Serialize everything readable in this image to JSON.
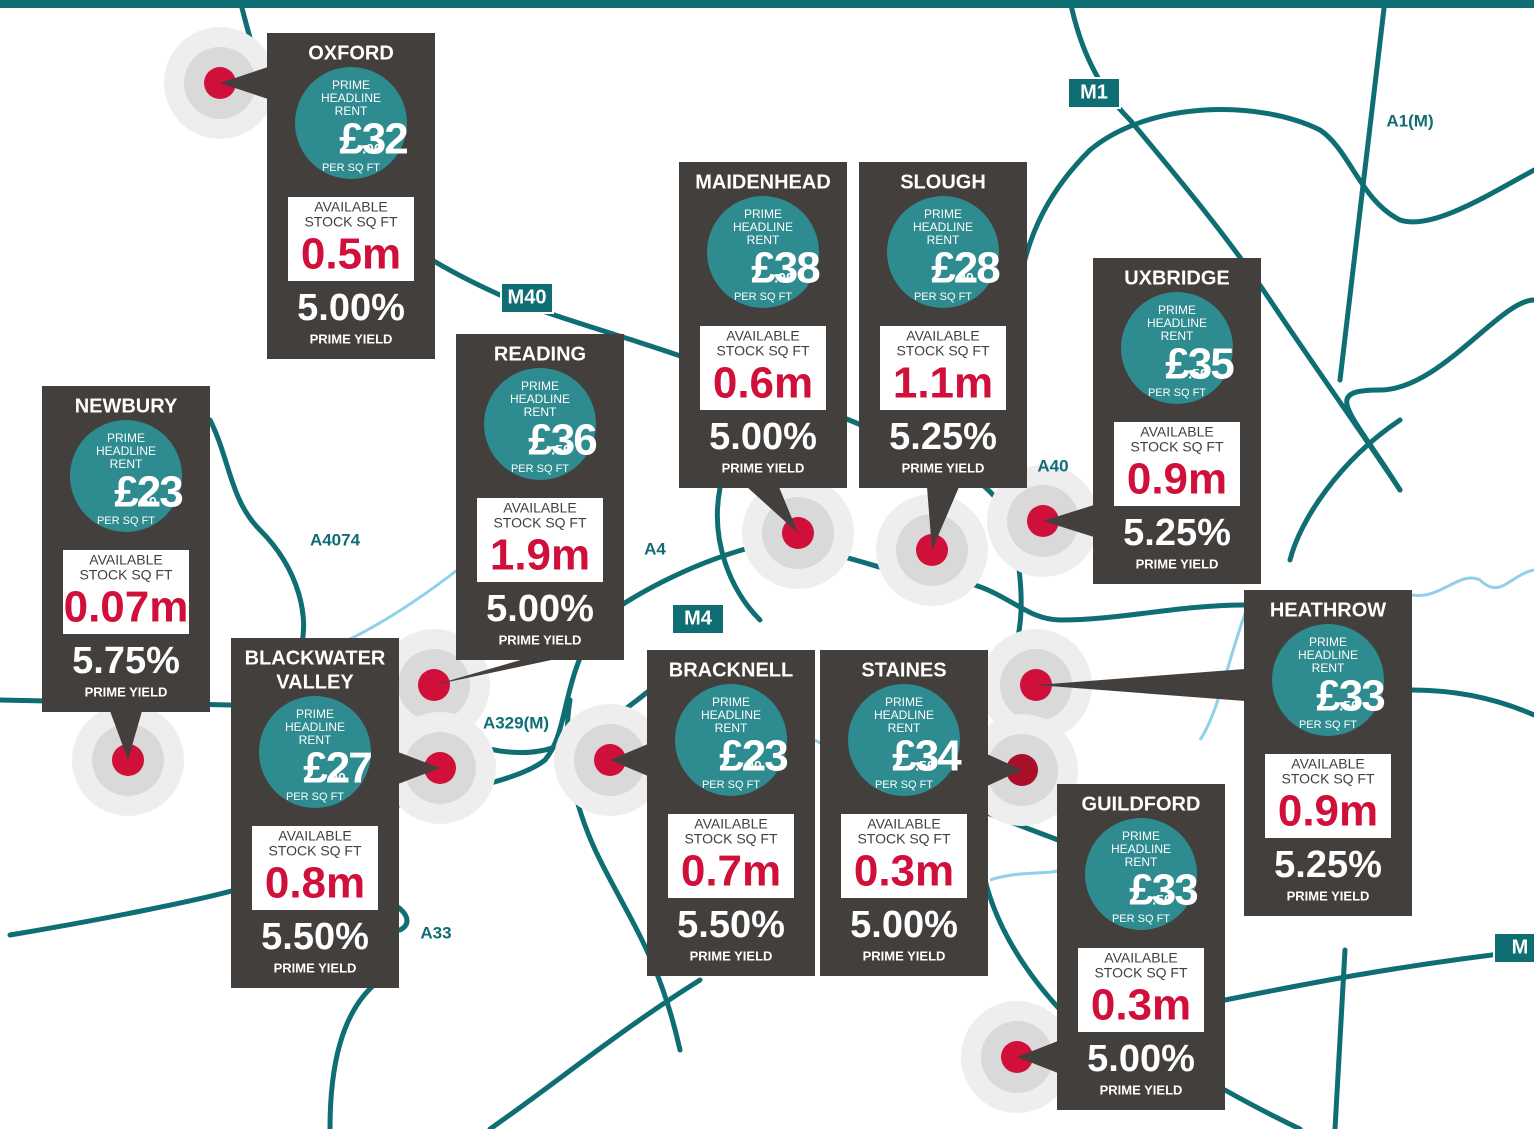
{
  "labels": {
    "rent": [
      "PRIME",
      "HEADLINE",
      "RENT"
    ],
    "per": "PER SQ FT",
    "stock": [
      "AVAILABLE",
      "STOCK SQ FT"
    ],
    "yield": "PRIME YIELD"
  },
  "locations": [
    {
      "name": [
        "OXFORD"
      ],
      "rent": "£32",
      "pence": ".00",
      "stock": "0.5m",
      "yield": "5.00%"
    },
    {
      "name": [
        "NEWBURY"
      ],
      "rent": "£23",
      "pence": ".50",
      "stock": "0.07m",
      "yield": "5.75%"
    },
    {
      "name": [
        "READING"
      ],
      "rent": "£36",
      "pence": ".50",
      "stock": "1.9m",
      "yield": "5.00%"
    },
    {
      "name": [
        "BLACKWATER",
        "VALLEY"
      ],
      "rent": "£27",
      "pence": ".00",
      "stock": "0.8m",
      "yield": "5.50%"
    },
    {
      "name": [
        "MAIDENHEAD"
      ],
      "rent": "£38",
      "pence": ".00",
      "stock": "0.6m",
      "yield": "5.00%"
    },
    {
      "name": [
        "SLOUGH"
      ],
      "rent": "£28",
      "pence": ".00",
      "stock": "1.1m",
      "yield": "5.25%"
    },
    {
      "name": [
        "UXBRIDGE"
      ],
      "rent": "£35",
      "pence": ".50",
      "stock": "0.9m",
      "yield": "5.25%"
    },
    {
      "name": [
        "HEATHROW"
      ],
      "rent": "£33",
      "pence": ".50",
      "stock": "0.9m",
      "yield": "5.25%"
    },
    {
      "name": [
        "BRACKNELL"
      ],
      "rent": "£23",
      "pence": ".00",
      "stock": "0.7m",
      "yield": "5.50%"
    },
    {
      "name": [
        "STAINES"
      ],
      "rent": "£34",
      "pence": ".50",
      "stock": "0.3m",
      "yield": "5.00%"
    },
    {
      "name": [
        "GUILDFORD"
      ],
      "rent": "£33",
      "pence": ".50",
      "stock": "0.3m",
      "yield": "5.00%"
    }
  ],
  "roads": [
    "M1",
    "A1(M)",
    "M40",
    "A40",
    "A4074",
    "A4",
    "M4",
    "A329(M)",
    "A33",
    "M"
  ]
}
